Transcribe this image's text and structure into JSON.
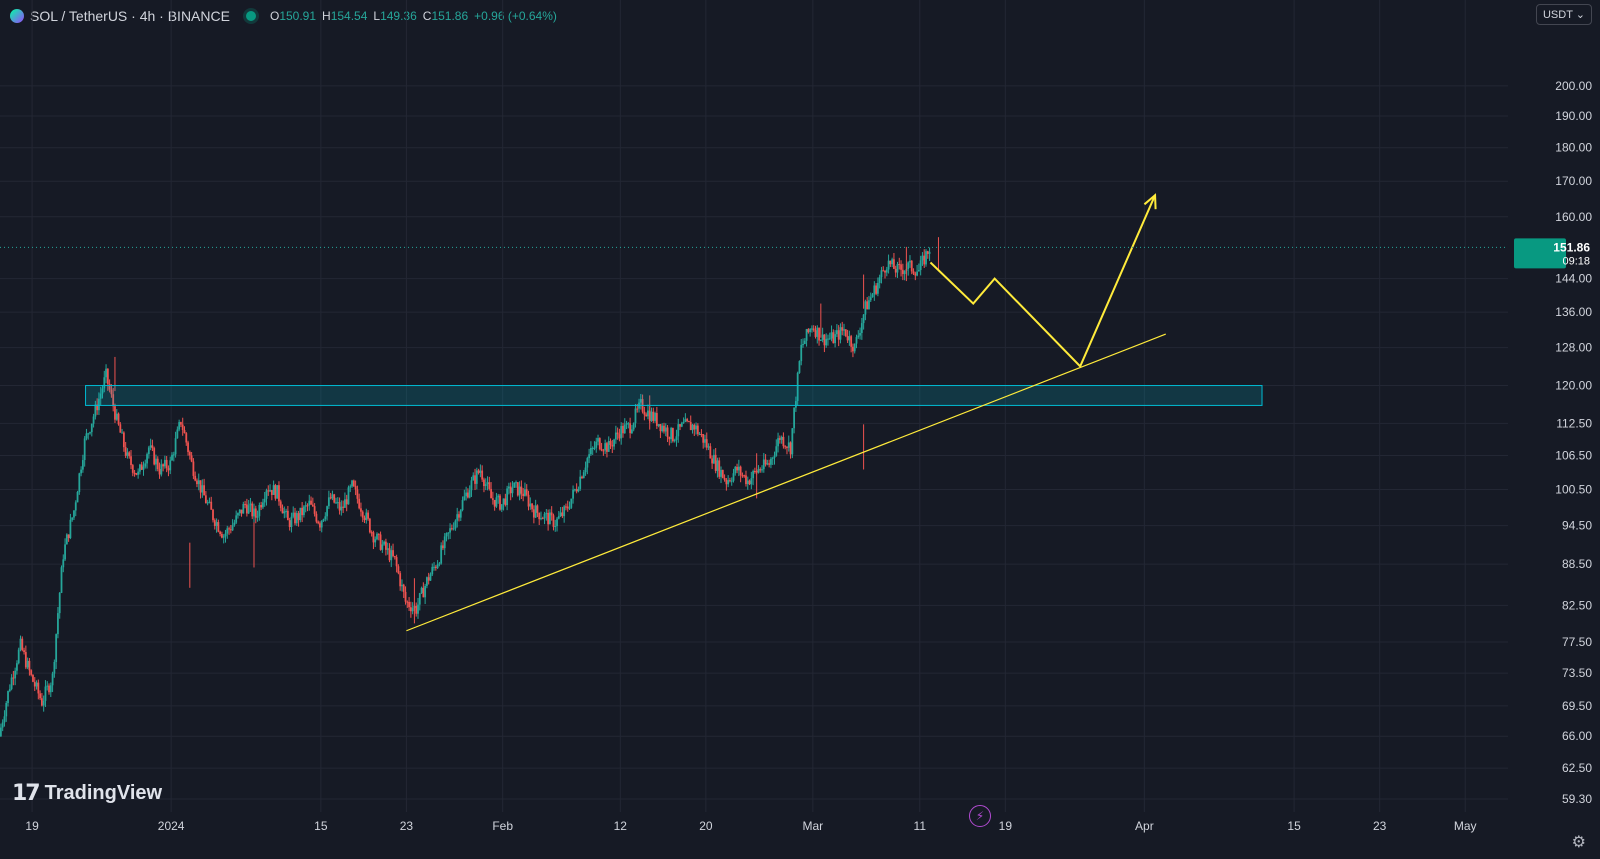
{
  "header": {
    "symbol": "SOL / TetherUS · 4h · BINANCE",
    "open_label": "O",
    "open": "150.91",
    "high_label": "H",
    "high": "154.54",
    "low_label": "L",
    "low": "149.36",
    "close_label": "C",
    "close": "151.86",
    "change": "+0.96 (+0.64%)"
  },
  "currency": "USDT",
  "logo": "TradingView",
  "last_price": {
    "value": "151.86",
    "countdown": "09:18"
  },
  "colors": {
    "background": "#161a25",
    "up": "#26a69a",
    "down": "#ef5350",
    "zone": "#00bcd4",
    "drawing": "#ffeb3b"
  },
  "chart_data": {
    "type": "candlestick",
    "scale": "log",
    "ylim": [
      58,
      220
    ],
    "xlim": [
      "2023-12-16",
      "2024-05-05"
    ],
    "price_ticks": [
      "200.00",
      "190.00",
      "180.00",
      "170.00",
      "160.00",
      "144.00",
      "136.00",
      "128.00",
      "120.00",
      "112.50",
      "106.50",
      "100.50",
      "94.50",
      "88.50",
      "82.50",
      "77.50",
      "73.50",
      "69.50",
      "66.00",
      "62.50",
      "59.30"
    ],
    "date_ticks": [
      {
        "label": "19",
        "date": "2023-12-19"
      },
      {
        "label": "2024",
        "date": "2024-01-01"
      },
      {
        "label": "15",
        "date": "2024-01-15"
      },
      {
        "label": "23",
        "date": "2024-01-23"
      },
      {
        "label": "Feb",
        "date": "2024-02-01"
      },
      {
        "label": "12",
        "date": "2024-02-12"
      },
      {
        "label": "20",
        "date": "2024-02-20"
      },
      {
        "label": "Mar",
        "date": "2024-03-01"
      },
      {
        "label": "11",
        "date": "2024-03-11"
      },
      {
        "label": "19",
        "date": "2024-03-19"
      },
      {
        "label": "Apr",
        "date": "2024-04-01"
      },
      {
        "label": "15",
        "date": "2024-04-15"
      },
      {
        "label": "23",
        "date": "2024-04-23"
      },
      {
        "label": "May",
        "date": "2024-05-01"
      }
    ],
    "price_path": [
      [
        "2023-12-16",
        66
      ],
      [
        "2023-12-17",
        72
      ],
      [
        "2023-12-18",
        77
      ],
      [
        "2023-12-19",
        73
      ],
      [
        "2023-12-20",
        70
      ],
      [
        "2023-12-21",
        73
      ],
      [
        "2023-12-22",
        90
      ],
      [
        "2023-12-23",
        97
      ],
      [
        "2023-12-24",
        109
      ],
      [
        "2023-12-25",
        115
      ],
      [
        "2023-12-26",
        122
      ],
      [
        "2023-12-27",
        113
      ],
      [
        "2023-12-28",
        106
      ],
      [
        "2023-12-29",
        103
      ],
      [
        "2023-12-30",
        108
      ],
      [
        "2023-12-31",
        104
      ],
      [
        "2024-01-01",
        105
      ],
      [
        "2024-01-02",
        113
      ],
      [
        "2024-01-03",
        105
      ],
      [
        "2024-01-04",
        100
      ],
      [
        "2024-01-05",
        96
      ],
      [
        "2024-01-06",
        93
      ],
      [
        "2024-01-07",
        95
      ],
      [
        "2024-01-08",
        98
      ],
      [
        "2024-01-09",
        96
      ],
      [
        "2024-01-10",
        101
      ],
      [
        "2024-01-11",
        100
      ],
      [
        "2024-01-12",
        95
      ],
      [
        "2024-01-13",
        96
      ],
      [
        "2024-01-14",
        98
      ],
      [
        "2024-01-15",
        95
      ],
      [
        "2024-01-16",
        99
      ],
      [
        "2024-01-17",
        97
      ],
      [
        "2024-01-18",
        101
      ],
      [
        "2024-01-19",
        97
      ],
      [
        "2024-01-20",
        93
      ],
      [
        "2024-01-21",
        91
      ],
      [
        "2024-01-22",
        89
      ],
      [
        "2024-01-23",
        83
      ],
      [
        "2024-01-24",
        82
      ],
      [
        "2024-01-25",
        86
      ],
      [
        "2024-01-26",
        89
      ],
      [
        "2024-01-27",
        93
      ],
      [
        "2024-01-28",
        97
      ],
      [
        "2024-01-29",
        101
      ],
      [
        "2024-01-30",
        104
      ],
      [
        "2024-01-31",
        99
      ],
      [
        "2024-02-01",
        98
      ],
      [
        "2024-02-02",
        101
      ],
      [
        "2024-02-03",
        100
      ],
      [
        "2024-02-04",
        97
      ],
      [
        "2024-02-05",
        96
      ],
      [
        "2024-02-06",
        95
      ],
      [
        "2024-02-07",
        97
      ],
      [
        "2024-02-08",
        101
      ],
      [
        "2024-02-09",
        106
      ],
      [
        "2024-02-10",
        109
      ],
      [
        "2024-02-11",
        108
      ],
      [
        "2024-02-12",
        111
      ],
      [
        "2024-02-13",
        112
      ],
      [
        "2024-02-14",
        116
      ],
      [
        "2024-02-15",
        114
      ],
      [
        "2024-02-16",
        112
      ],
      [
        "2024-02-17",
        110
      ],
      [
        "2024-02-18",
        112
      ],
      [
        "2024-02-19",
        112
      ],
      [
        "2024-02-20",
        109
      ],
      [
        "2024-02-21",
        105
      ],
      [
        "2024-02-22",
        102
      ],
      [
        "2024-02-23",
        104
      ],
      [
        "2024-02-24",
        102
      ],
      [
        "2024-02-25",
        104
      ],
      [
        "2024-02-26",
        105
      ],
      [
        "2024-02-27",
        110
      ],
      [
        "2024-02-28",
        108
      ],
      [
        "2024-02-29",
        128
      ],
      [
        "2024-03-01",
        133
      ],
      [
        "2024-03-02",
        130
      ],
      [
        "2024-03-03",
        130
      ],
      [
        "2024-03-04",
        132
      ],
      [
        "2024-03-05",
        128
      ],
      [
        "2024-03-06",
        137
      ],
      [
        "2024-03-07",
        142
      ],
      [
        "2024-03-08",
        148
      ],
      [
        "2024-03-09",
        146
      ],
      [
        "2024-03-10",
        147
      ],
      [
        "2024-03-11",
        146
      ],
      [
        "2024-03-12",
        151.86
      ]
    ],
    "lows": [
      [
        "2024-01-02",
        85
      ],
      [
        "2024-01-08",
        88
      ],
      [
        "2024-01-23",
        80
      ],
      [
        "2024-03-05",
        104
      ],
      [
        "2024-02-24",
        99
      ]
    ],
    "highs": [
      [
        "2023-12-26",
        126
      ],
      [
        "2024-02-14",
        118
      ],
      [
        "2024-03-01",
        138
      ],
      [
        "2024-03-05",
        145
      ],
      [
        "2024-03-09",
        152
      ],
      [
        "2024-03-12",
        154.54
      ]
    ],
    "zone": {
      "from": "2023-12-24",
      "to": "2024-04-12",
      "top": 120,
      "bottom": 116
    },
    "trendline": {
      "from": [
        "2024-01-23",
        79
      ],
      "to": [
        "2024-04-03",
        131
      ]
    },
    "projection": [
      [
        "2024-03-12",
        148
      ],
      [
        "2024-03-16",
        138
      ],
      [
        "2024-03-18",
        144
      ],
      [
        "2024-03-26",
        124
      ],
      [
        "2024-04-02",
        166
      ]
    ]
  }
}
